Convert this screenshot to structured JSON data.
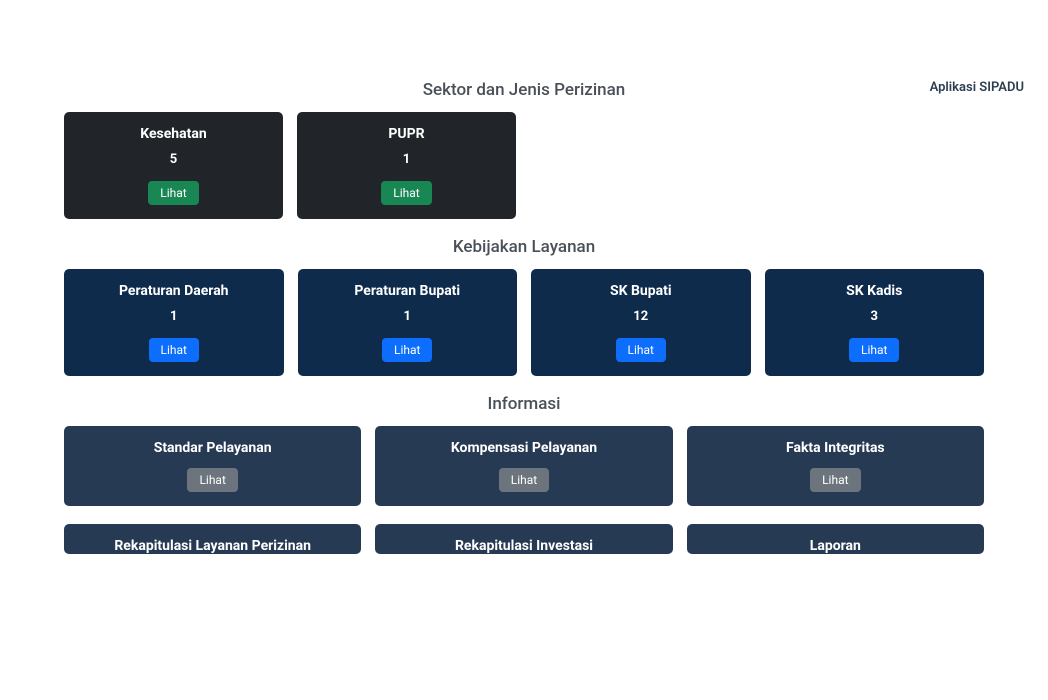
{
  "top_link": "Aplikasi SIPADU",
  "sections": {
    "sektor": {
      "title": "Sektor dan Jenis Perizinan",
      "cards": [
        {
          "title": "Kesehatan",
          "count": "5",
          "button": "Lihat"
        },
        {
          "title": "PUPR",
          "count": "1",
          "button": "Lihat"
        }
      ]
    },
    "kebijakan": {
      "title": "Kebijakan Layanan",
      "cards": [
        {
          "title": "Peraturan Daerah",
          "count": "1",
          "button": "Lihat"
        },
        {
          "title": "Peraturan Bupati",
          "count": "1",
          "button": "Lihat"
        },
        {
          "title": "SK Bupati",
          "count": "12",
          "button": "Lihat"
        },
        {
          "title": "SK Kadis",
          "count": "3",
          "button": "Lihat"
        }
      ]
    },
    "informasi": {
      "title": "Informasi",
      "row1": [
        {
          "title": "Standar Pelayanan",
          "button": "Lihat"
        },
        {
          "title": "Kompensasi Pelayanan",
          "button": "Lihat"
        },
        {
          "title": "Fakta Integritas",
          "button": "Lihat"
        }
      ],
      "row2": [
        {
          "title": "Rekapitulasi Layanan Perizinan"
        },
        {
          "title": "Rekapitulasi Investasi"
        },
        {
          "title": "Laporan"
        }
      ]
    }
  },
  "colors": {
    "card_dark": "#212529",
    "card_navy": "#0f2b4c",
    "card_slate": "#263a53",
    "btn_green": "#198754",
    "btn_blue": "#0d6efd",
    "btn_gray": "#6c757d",
    "title_text": "#495057",
    "background": "#ffffff"
  }
}
